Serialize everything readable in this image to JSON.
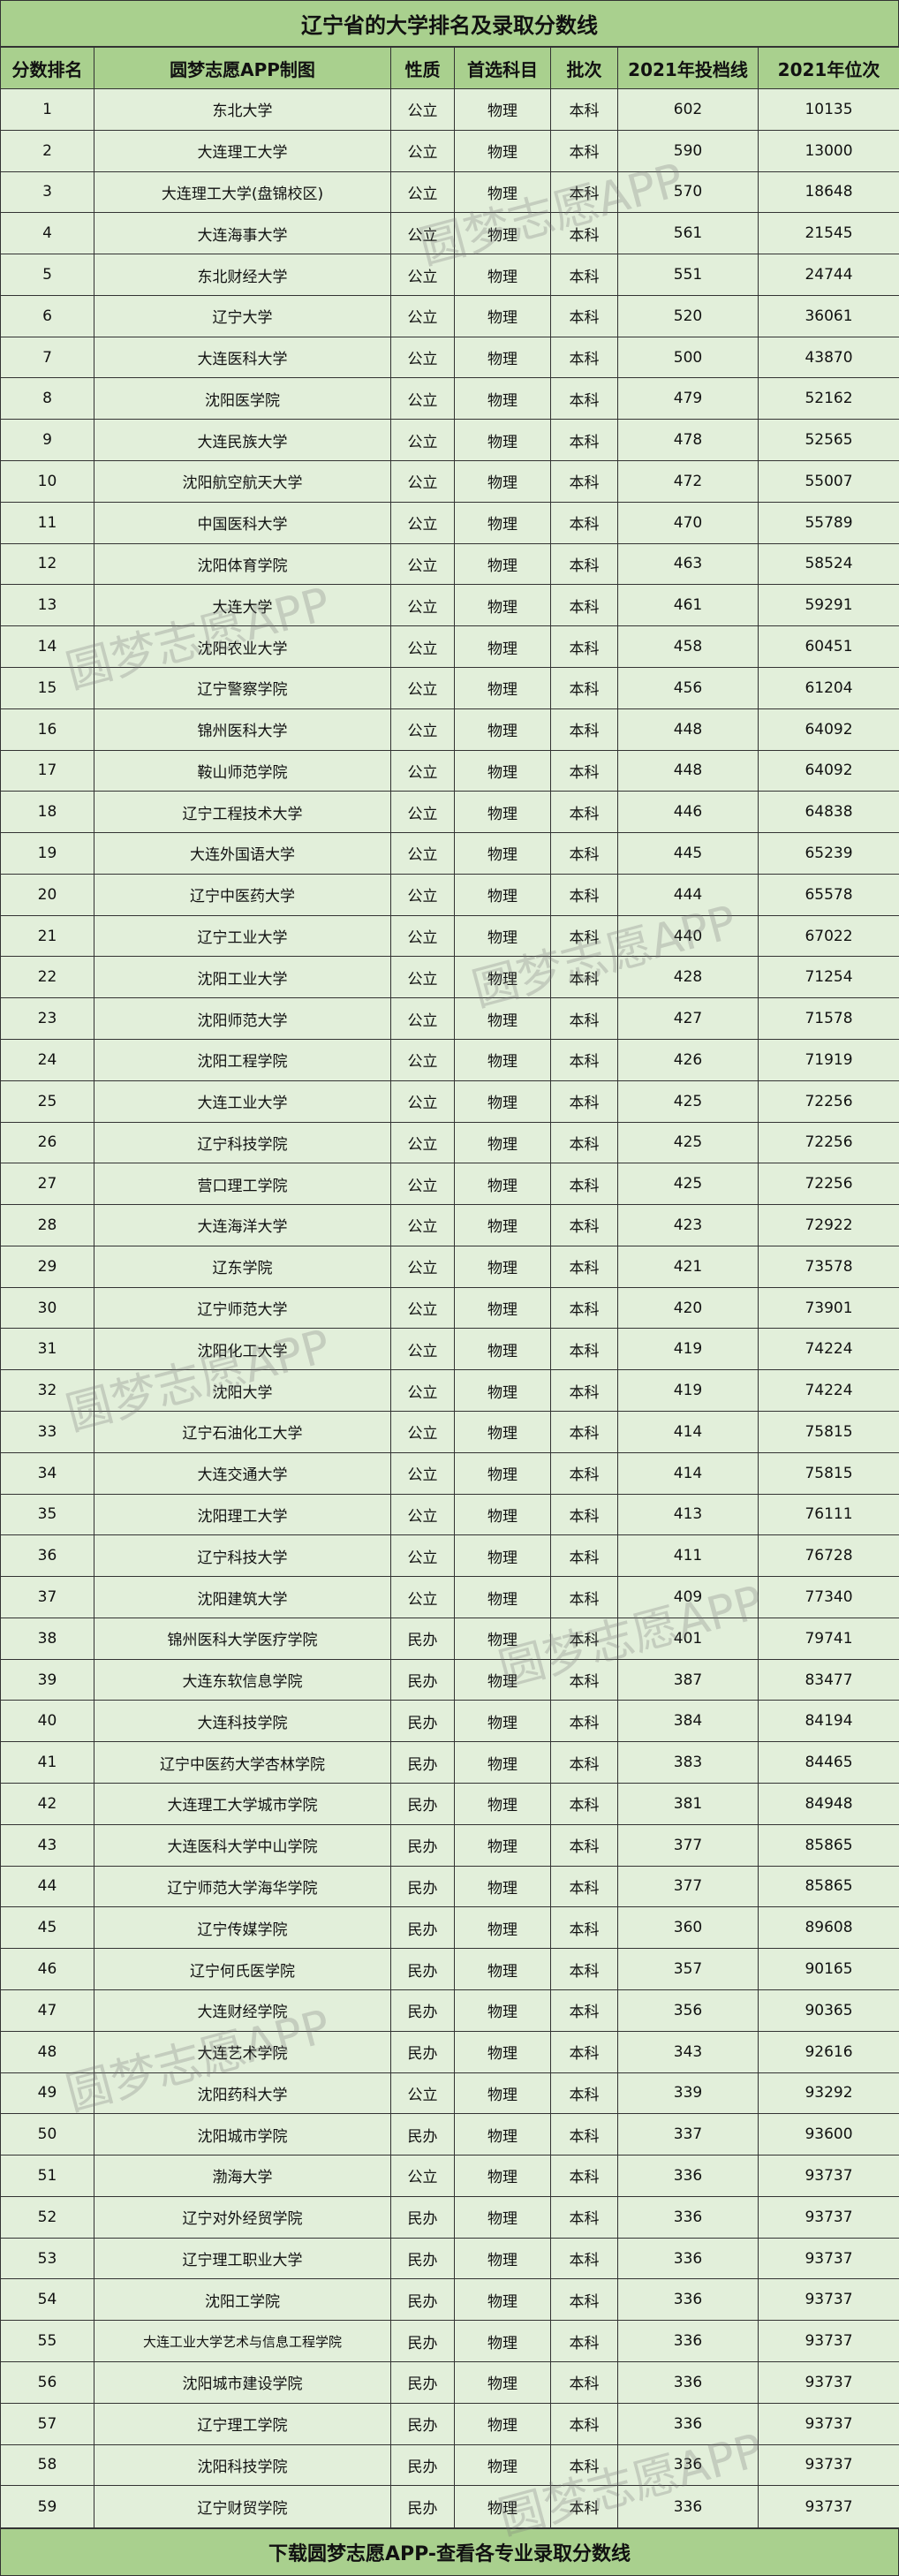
{
  "title": "辽宁省的大学排名及录取分数线",
  "columns": [
    "分数排名",
    "圆梦志愿APP制图",
    "性质",
    "首选科目",
    "批次",
    "2021年投档线",
    "2021年位次"
  ],
  "rows": [
    [
      "1",
      "东北大学",
      "公立",
      "物理",
      "本科",
      "602",
      "10135"
    ],
    [
      "2",
      "大连理工大学",
      "公立",
      "物理",
      "本科",
      "590",
      "13000"
    ],
    [
      "3",
      "大连理工大学(盘锦校区)",
      "公立",
      "物理",
      "本科",
      "570",
      "18648"
    ],
    [
      "4",
      "大连海事大学",
      "公立",
      "物理",
      "本科",
      "561",
      "21545"
    ],
    [
      "5",
      "东北财经大学",
      "公立",
      "物理",
      "本科",
      "551",
      "24744"
    ],
    [
      "6",
      "辽宁大学",
      "公立",
      "物理",
      "本科",
      "520",
      "36061"
    ],
    [
      "7",
      "大连医科大学",
      "公立",
      "物理",
      "本科",
      "500",
      "43870"
    ],
    [
      "8",
      "沈阳医学院",
      "公立",
      "物理",
      "本科",
      "479",
      "52162"
    ],
    [
      "9",
      "大连民族大学",
      "公立",
      "物理",
      "本科",
      "478",
      "52565"
    ],
    [
      "10",
      "沈阳航空航天大学",
      "公立",
      "物理",
      "本科",
      "472",
      "55007"
    ],
    [
      "11",
      "中国医科大学",
      "公立",
      "物理",
      "本科",
      "470",
      "55789"
    ],
    [
      "12",
      "沈阳体育学院",
      "公立",
      "物理",
      "本科",
      "463",
      "58524"
    ],
    [
      "13",
      "大连大学",
      "公立",
      "物理",
      "本科",
      "461",
      "59291"
    ],
    [
      "14",
      "沈阳农业大学",
      "公立",
      "物理",
      "本科",
      "458",
      "60451"
    ],
    [
      "15",
      "辽宁警察学院",
      "公立",
      "物理",
      "本科",
      "456",
      "61204"
    ],
    [
      "16",
      "锦州医科大学",
      "公立",
      "物理",
      "本科",
      "448",
      "64092"
    ],
    [
      "17",
      "鞍山师范学院",
      "公立",
      "物理",
      "本科",
      "448",
      "64092"
    ],
    [
      "18",
      "辽宁工程技术大学",
      "公立",
      "物理",
      "本科",
      "446",
      "64838"
    ],
    [
      "19",
      "大连外国语大学",
      "公立",
      "物理",
      "本科",
      "445",
      "65239"
    ],
    [
      "20",
      "辽宁中医药大学",
      "公立",
      "物理",
      "本科",
      "444",
      "65578"
    ],
    [
      "21",
      "辽宁工业大学",
      "公立",
      "物理",
      "本科",
      "440",
      "67022"
    ],
    [
      "22",
      "沈阳工业大学",
      "公立",
      "物理",
      "本科",
      "428",
      "71254"
    ],
    [
      "23",
      "沈阳师范大学",
      "公立",
      "物理",
      "本科",
      "427",
      "71578"
    ],
    [
      "24",
      "沈阳工程学院",
      "公立",
      "物理",
      "本科",
      "426",
      "71919"
    ],
    [
      "25",
      "大连工业大学",
      "公立",
      "物理",
      "本科",
      "425",
      "72256"
    ],
    [
      "26",
      "辽宁科技学院",
      "公立",
      "物理",
      "本科",
      "425",
      "72256"
    ],
    [
      "27",
      "营口理工学院",
      "公立",
      "物理",
      "本科",
      "425",
      "72256"
    ],
    [
      "28",
      "大连海洋大学",
      "公立",
      "物理",
      "本科",
      "423",
      "72922"
    ],
    [
      "29",
      "辽东学院",
      "公立",
      "物理",
      "本科",
      "421",
      "73578"
    ],
    [
      "30",
      "辽宁师范大学",
      "公立",
      "物理",
      "本科",
      "420",
      "73901"
    ],
    [
      "31",
      "沈阳化工大学",
      "公立",
      "物理",
      "本科",
      "419",
      "74224"
    ],
    [
      "32",
      "沈阳大学",
      "公立",
      "物理",
      "本科",
      "419",
      "74224"
    ],
    [
      "33",
      "辽宁石油化工大学",
      "公立",
      "物理",
      "本科",
      "414",
      "75815"
    ],
    [
      "34",
      "大连交通大学",
      "公立",
      "物理",
      "本科",
      "414",
      "75815"
    ],
    [
      "35",
      "沈阳理工大学",
      "公立",
      "物理",
      "本科",
      "413",
      "76111"
    ],
    [
      "36",
      "辽宁科技大学",
      "公立",
      "物理",
      "本科",
      "411",
      "76728"
    ],
    [
      "37",
      "沈阳建筑大学",
      "公立",
      "物理",
      "本科",
      "409",
      "77340"
    ],
    [
      "38",
      "锦州医科大学医疗学院",
      "民办",
      "物理",
      "本科",
      "401",
      "79741"
    ],
    [
      "39",
      "大连东软信息学院",
      "民办",
      "物理",
      "本科",
      "387",
      "83477"
    ],
    [
      "40",
      "大连科技学院",
      "民办",
      "物理",
      "本科",
      "384",
      "84194"
    ],
    [
      "41",
      "辽宁中医药大学杏林学院",
      "民办",
      "物理",
      "本科",
      "383",
      "84465"
    ],
    [
      "42",
      "大连理工大学城市学院",
      "民办",
      "物理",
      "本科",
      "381",
      "84948"
    ],
    [
      "43",
      "大连医科大学中山学院",
      "民办",
      "物理",
      "本科",
      "377",
      "85865"
    ],
    [
      "44",
      "辽宁师范大学海华学院",
      "民办",
      "物理",
      "本科",
      "377",
      "85865"
    ],
    [
      "45",
      "辽宁传媒学院",
      "民办",
      "物理",
      "本科",
      "360",
      "89608"
    ],
    [
      "46",
      "辽宁何氏医学院",
      "民办",
      "物理",
      "本科",
      "357",
      "90165"
    ],
    [
      "47",
      "大连财经学院",
      "民办",
      "物理",
      "本科",
      "356",
      "90365"
    ],
    [
      "48",
      "大连艺术学院",
      "民办",
      "物理",
      "本科",
      "343",
      "92616"
    ],
    [
      "49",
      "沈阳药科大学",
      "公立",
      "物理",
      "本科",
      "339",
      "93292"
    ],
    [
      "50",
      "沈阳城市学院",
      "民办",
      "物理",
      "本科",
      "337",
      "93600"
    ],
    [
      "51",
      "渤海大学",
      "公立",
      "物理",
      "本科",
      "336",
      "93737"
    ],
    [
      "52",
      "辽宁对外经贸学院",
      "民办",
      "物理",
      "本科",
      "336",
      "93737"
    ],
    [
      "53",
      "辽宁理工职业大学",
      "民办",
      "物理",
      "本科",
      "336",
      "93737"
    ],
    [
      "54",
      "沈阳工学院",
      "民办",
      "物理",
      "本科",
      "336",
      "93737"
    ],
    [
      "55",
      "大连工业大学艺术与信息工程学院",
      "民办",
      "物理",
      "本科",
      "336",
      "93737"
    ],
    [
      "56",
      "沈阳城市建设学院",
      "民办",
      "物理",
      "本科",
      "336",
      "93737"
    ],
    [
      "57",
      "辽宁理工学院",
      "民办",
      "物理",
      "本科",
      "336",
      "93737"
    ],
    [
      "58",
      "沈阳科技学院",
      "民办",
      "物理",
      "本科",
      "336",
      "93737"
    ],
    [
      "59",
      "辽宁财贸学院",
      "民办",
      "物理",
      "本科",
      "336",
      "93737"
    ]
  ],
  "footer": "下载圆梦志愿APP-查看各专业录取分数线",
  "watermark": "圆梦志愿APP",
  "colors": {
    "header_bg": "#a9d08e",
    "row_bg": "#e2efda",
    "border": "#333333"
  }
}
